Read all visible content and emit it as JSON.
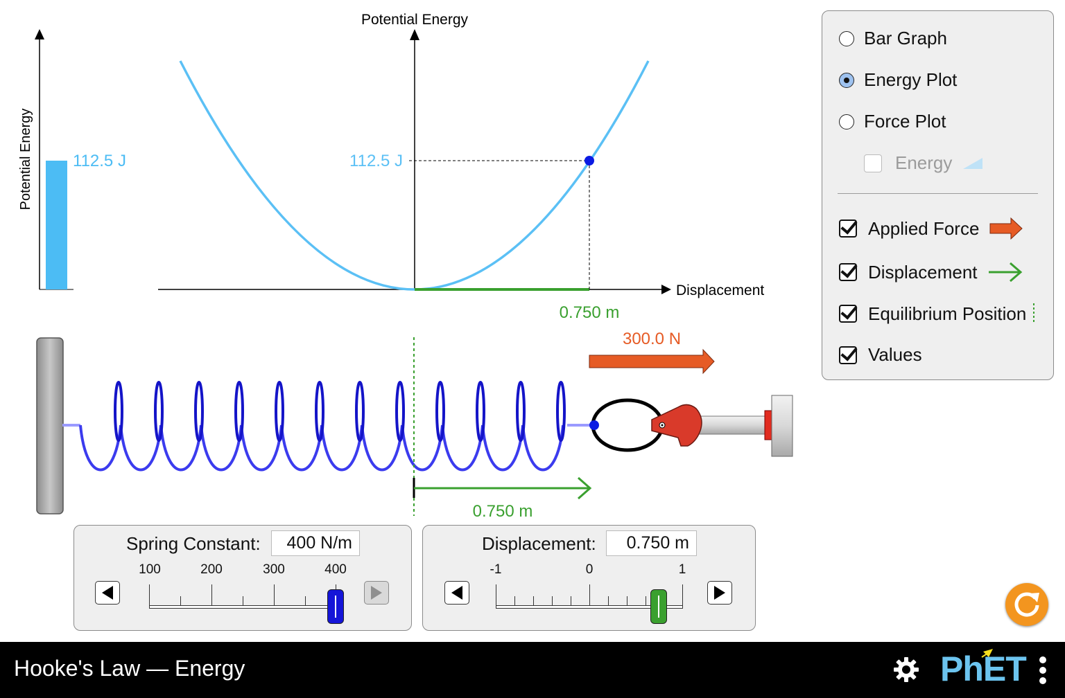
{
  "energy_bar": {
    "axis_label": "Potential Energy",
    "value_label": "112.5 J",
    "value": 112.5
  },
  "energy_plot": {
    "y_axis_label": "Potential Energy",
    "x_axis_label": "Displacement",
    "energy_label": "112.5 J",
    "displacement_label": "0.750 m"
  },
  "scene": {
    "applied_force_label": "300.0 N",
    "displacement_label": "0.750 m"
  },
  "visual_panel": {
    "bar_graph": "Bar Graph",
    "energy_plot": "Energy Plot",
    "force_plot": "Force Plot",
    "energy": "Energy",
    "applied_force": "Applied Force",
    "displacement": "Displacement",
    "equilibrium_position": "Equilibrium Position",
    "values": "Values",
    "selected": "Energy Plot"
  },
  "spring_constant_control": {
    "title": "Spring Constant:",
    "value": "400 N/m",
    "ticks": [
      "100",
      "200",
      "300",
      "400"
    ],
    "range": [
      100,
      400
    ],
    "current": 400
  },
  "displacement_control": {
    "title": "Displacement:",
    "value": "0.750 m",
    "ticks": [
      "-1",
      "0",
      "1"
    ],
    "range": [
      -1,
      1
    ],
    "current": 0.75
  },
  "footer": {
    "app_title": "Hooke's Law — Energy",
    "brand": "PhET"
  },
  "colors": {
    "energy": "#5bc0f5",
    "displacement": "#3aa02f",
    "applied_force": "#e65b25",
    "spring": "#1c1cd6",
    "reset": "#f3951f"
  }
}
